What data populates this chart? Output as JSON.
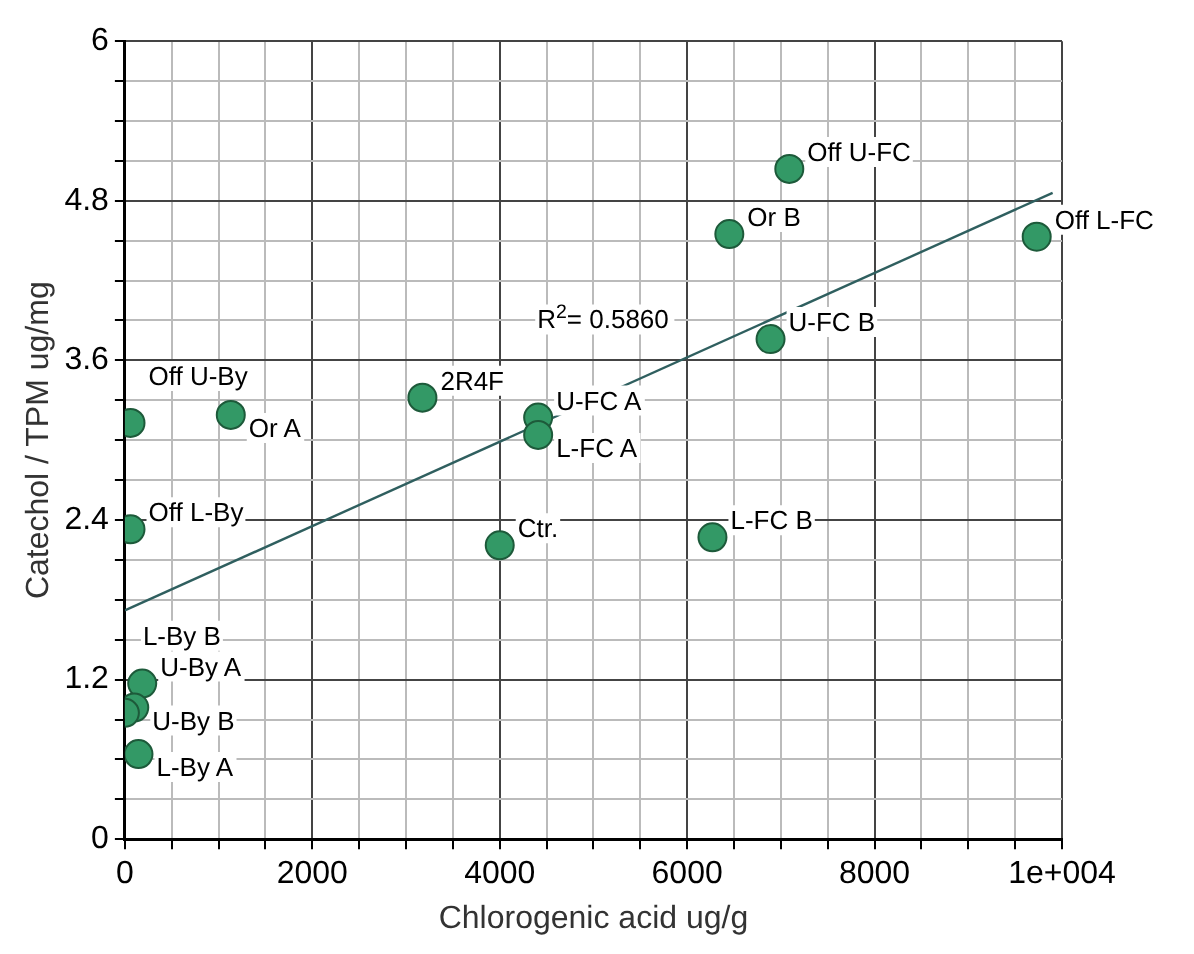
{
  "chart_data": {
    "type": "scatter",
    "xlabel": "Chlorogenic acid ug/g",
    "ylabel": "Catechol / TPM ug/mg",
    "xlim": [
      0,
      10000
    ],
    "ylim": [
      0,
      6
    ],
    "xticks": [
      0,
      {
        "value": 500,
        "label": null
      },
      2000,
      {
        "value": 1000,
        "label": null
      },
      {
        "value": 1500,
        "label": null
      },
      {
        "value": 2500,
        "label": null
      },
      {
        "value": 3000,
        "label": null
      },
      {
        "value": 3500,
        "label": null
      },
      4000,
      {
        "value": 4500,
        "label": null
      },
      {
        "value": 5000,
        "label": null
      },
      {
        "value": 5500,
        "label": null
      },
      6000,
      {
        "value": 6500,
        "label": null
      },
      {
        "value": 7000,
        "label": null
      },
      {
        "value": 7500,
        "label": null
      },
      8000,
      {
        "value": 8500,
        "label": null
      },
      {
        "value": 9000,
        "label": null
      },
      {
        "value": 9500,
        "label": null
      },
      {
        "value": 10000,
        "label": "1e+004"
      }
    ],
    "yticks": [
      0,
      {
        "value": 0.3,
        "label": null
      },
      {
        "value": 0.6,
        "label": null
      },
      {
        "value": 0.9,
        "label": null
      },
      1.2,
      {
        "value": 1.5,
        "label": null
      },
      {
        "value": 1.8,
        "label": null
      },
      {
        "value": 2.1,
        "label": null
      },
      2.4,
      {
        "value": 2.7,
        "label": null
      },
      {
        "value": 3,
        "label": null
      },
      {
        "value": 3.3,
        "label": null
      },
      3.6,
      {
        "value": 3.9,
        "label": null
      },
      {
        "value": 4.2,
        "label": null
      },
      {
        "value": 4.5,
        "label": null
      },
      4.8,
      {
        "value": 5.1,
        "label": null
      },
      {
        "value": 5.4,
        "label": null
      },
      {
        "value": 5.7,
        "label": null
      },
      6
    ],
    "grid": true,
    "legend": false,
    "marker": "circle",
    "series": [
      {
        "type": "scatter",
        "color": "#339966",
        "x": [
          60,
          1130,
          3175,
          4410,
          4410,
          60,
          4000,
          6270,
          6890,
          6450,
          7090,
          9730,
          185,
          100,
          0,
          145
        ],
        "values": [
          3.13,
          3.19,
          3.32,
          3.17,
          3.04,
          2.33,
          2.21,
          2.27,
          3.76,
          4.55,
          5.04,
          4.53,
          1.17,
          0.99,
          0.95,
          0.64
        ]
      },
      {
        "type": "line",
        "color": "#2f5f5f",
        "x": [
          0,
          9900
        ],
        "values": [
          1.72,
          4.86
        ],
        "marker": "none"
      }
    ],
    "annotations": [
      {
        "text": "Off U-By",
        "x": 60,
        "y": 3.13
      },
      {
        "text": "Or A",
        "x": 1130,
        "y": 3.19
      },
      {
        "text": "2R4F",
        "x": 3175,
        "y": 3.32
      },
      {
        "text": "U-FC A",
        "x": 4410,
        "y": 3.17
      },
      {
        "text": "L-FC A",
        "x": 4410,
        "y": 3.04
      },
      {
        "text": "Off L-By",
        "x": 60,
        "y": 2.33
      },
      {
        "text": "Ctr.",
        "x": 4000,
        "y": 2.21
      },
      {
        "text": "L-FC B",
        "x": 6270,
        "y": 2.27
      },
      {
        "text": "U-FC B",
        "x": 6890,
        "y": 3.76
      },
      {
        "text": "Or B",
        "x": 6450,
        "y": 4.55
      },
      {
        "text": "Off U-FC",
        "x": 7090,
        "y": 5.04
      },
      {
        "text": "Off L-FC",
        "x": 9730,
        "y": 4.53
      },
      {
        "text": "U-By A",
        "x": 185,
        "y": 1.17
      },
      {
        "text": "U-By B",
        "x": 100,
        "y": 0.99
      },
      {
        "text": "L-By B",
        "x": 0,
        "y": 0.95
      },
      {
        "text": "L-By A",
        "x": 145,
        "y": 0.64
      },
      "R$^{2}$= 0.5860"
    ]
  }
}
